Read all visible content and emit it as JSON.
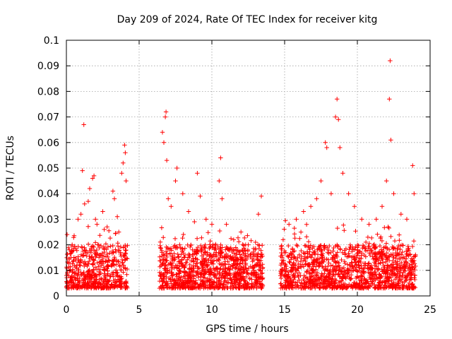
{
  "chart_data": {
    "type": "scatter",
    "title": "Day 209 of 2024, Rate Of TEC Index for receiver kitg",
    "xlabel": "GPS time / hours",
    "ylabel": "ROTI / TECUs",
    "xlim": [
      0,
      25
    ],
    "ylim": [
      0,
      0.1
    ],
    "x_ticks": [
      0,
      5,
      10,
      15,
      20,
      25
    ],
    "x_tick_labels": [
      "0",
      "5",
      "10",
      "15",
      "20",
      "25"
    ],
    "y_ticks": [
      0,
      0.01,
      0.02,
      0.03,
      0.04,
      0.05,
      0.06,
      0.07,
      0.08,
      0.09,
      0.1
    ],
    "y_tick_labels": [
      "0",
      "0.01",
      "0.02",
      "0.03",
      "0.04",
      "0.05",
      "0.06",
      "0.07",
      "0.08",
      "0.09",
      "0.1"
    ],
    "grid": true,
    "marker": "+",
    "series_color": "#ff0000",
    "data_gaps_hours": [
      [
        4.2,
        6.4
      ],
      [
        13.5,
        14.7
      ]
    ],
    "series": [
      {
        "name": "ROTI",
        "x": [
          0.05,
          0.2,
          0.4,
          0.8,
          1.0,
          1.1,
          1.2,
          1.25,
          1.5,
          1.6,
          1.8,
          1.9,
          2.0,
          2.1,
          2.5,
          2.6,
          2.8,
          3.2,
          3.3,
          3.5,
          3.6,
          3.8,
          3.9,
          4.0,
          4.05,
          4.1,
          6.6,
          6.7,
          6.8,
          6.85,
          6.9,
          7.0,
          7.2,
          7.5,
          7.6,
          8.0,
          8.4,
          8.8,
          9.0,
          9.2,
          9.6,
          10.0,
          10.5,
          10.6,
          10.7,
          11.0,
          11.5,
          12.0,
          12.5,
          13.0,
          13.2,
          13.4,
          14.9,
          15.3,
          15.8,
          16.3,
          16.8,
          17.2,
          17.5,
          17.8,
          17.9,
          18.2,
          18.5,
          18.6,
          18.7,
          18.8,
          19.0,
          19.4,
          19.8,
          20.3,
          20.8,
          21.3,
          21.7,
          22.0,
          22.2,
          22.25,
          22.3,
          22.5,
          23.0,
          23.4,
          23.8,
          23.9
        ],
        "y": [
          0.024,
          0.018,
          0.02,
          0.03,
          0.032,
          0.049,
          0.067,
          0.036,
          0.037,
          0.042,
          0.046,
          0.047,
          0.03,
          0.028,
          0.033,
          0.026,
          0.027,
          0.041,
          0.038,
          0.031,
          0.025,
          0.048,
          0.052,
          0.059,
          0.056,
          0.045,
          0.064,
          0.06,
          0.07,
          0.072,
          0.053,
          0.038,
          0.035,
          0.045,
          0.05,
          0.04,
          0.033,
          0.029,
          0.048,
          0.039,
          0.03,
          0.028,
          0.045,
          0.054,
          0.038,
          0.028,
          0.022,
          0.025,
          0.02,
          0.021,
          0.032,
          0.039,
          0.022,
          0.028,
          0.03,
          0.033,
          0.035,
          0.038,
          0.045,
          0.06,
          0.058,
          0.04,
          0.07,
          0.077,
          0.069,
          0.058,
          0.048,
          0.04,
          0.035,
          0.03,
          0.028,
          0.03,
          0.035,
          0.045,
          0.077,
          0.092,
          0.061,
          0.04,
          0.032,
          0.03,
          0.051,
          0.04
        ],
        "baseline_points": "dense band of values between about 0.002 and 0.02 TECU covering 0–4.2 h, 6.4–13.5 h and 14.7–24 h"
      }
    ]
  }
}
